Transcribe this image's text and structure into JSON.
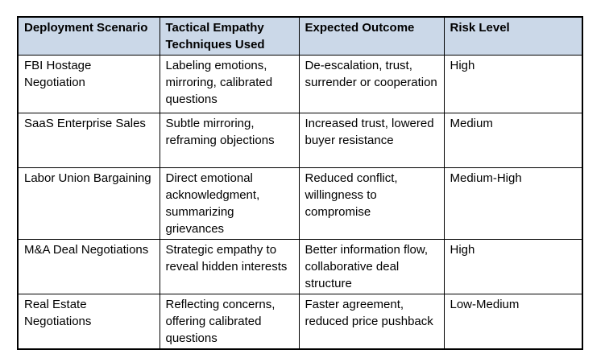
{
  "table": {
    "header_bg": "#cbd8e8",
    "border_color": "#000000",
    "columns": [
      "Deployment Scenario",
      "Tactical Empathy Techniques Used",
      "Expected Outcome",
      "Risk Level"
    ],
    "rows": [
      {
        "scenario": "FBI Hostage Negotiation",
        "techniques": "Labeling emotions, mirroring, calibrated questions",
        "outcome": "De-escalation, trust, surrender or cooperation",
        "risk": "High"
      },
      {
        "scenario": "SaaS Enterprise Sales",
        "techniques": "Subtle mirroring, reframing objections",
        "outcome": "Increased trust, lowered buyer resistance",
        "risk": "Medium"
      },
      {
        "scenario": "Labor Union Bargaining",
        "techniques": "Direct emotional acknowledgment, summarizing grievances",
        "outcome": "Reduced conflict, willingness to compromise",
        "risk": "Medium-High"
      },
      {
        "scenario": "M&A Deal Negotiations",
        "techniques": "Strategic empathy to reveal hidden interests",
        "outcome": "Better information flow, collaborative deal structure",
        "risk": "High"
      },
      {
        "scenario": "Real Estate Negotiations",
        "techniques": "Reflecting concerns, offering calibrated questions",
        "outcome": "Faster agreement, reduced price pushback",
        "risk": "Low-Medium"
      }
    ]
  }
}
